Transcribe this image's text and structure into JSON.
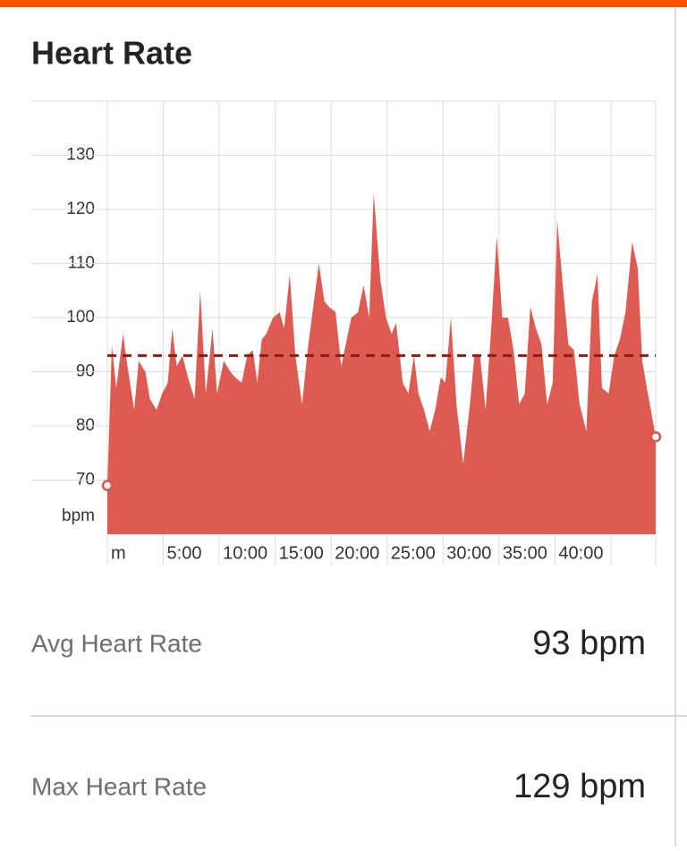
{
  "header": {
    "title": "Heart Rate"
  },
  "chart_data": {
    "type": "area",
    "y_label": "bpm",
    "x": [
      0,
      0.4,
      0.8,
      1.4,
      1.8,
      2.4,
      2.8,
      3.4,
      3.8,
      4.4,
      4.9,
      5.4,
      5.8,
      6.2,
      6.7,
      7.2,
      7.8,
      8.3,
      8.8,
      9.4,
      9.8,
      10.4,
      11,
      11.4,
      12,
      12.5,
      13,
      13.4,
      13.8,
      14.2,
      14.8,
      15.4,
      15.8,
      16.3,
      16.8,
      17.4,
      17.9,
      18.4,
      18.9,
      19.4,
      19.8,
      20.4,
      20.9,
      21.4,
      21.8,
      22.4,
      22.9,
      23.4,
      23.8,
      24.4,
      24.9,
      25.4,
      25.8,
      26.4,
      26.9,
      27.4,
      27.8,
      28.3,
      28.8,
      29.3,
      29.8,
      30.2,
      30.7,
      31.2,
      31.8,
      32.4,
      32.8,
      33.3,
      33.8,
      34.3,
      34.8,
      35.3,
      35.8,
      36.3,
      36.8,
      37.3,
      37.8,
      38.3,
      38.8,
      39.3,
      39.8,
      40.2,
      40.7,
      41.2,
      41.7,
      42.2,
      42.8,
      43.3,
      43.8,
      44.2,
      44.8,
      45.3,
      45.8,
      46.3,
      46.9,
      47.4,
      47.8,
      48.3,
      49
    ],
    "values": [
      69,
      95,
      87,
      97,
      91,
      83,
      92,
      90,
      85,
      83,
      86,
      88,
      98,
      91,
      93,
      89,
      85,
      105,
      86,
      98,
      86,
      92,
      90,
      89,
      88,
      93,
      94,
      88,
      96,
      97,
      100,
      101,
      98,
      108,
      93,
      84,
      94,
      102,
      110,
      103,
      102,
      101,
      91,
      96,
      100,
      101,
      106,
      100,
      123,
      107,
      100,
      97,
      99,
      88,
      86,
      93,
      86,
      83,
      79,
      83,
      89,
      88,
      100,
      84,
      73,
      84,
      93,
      93,
      83,
      98,
      115,
      100,
      100,
      94,
      84,
      86,
      102,
      98,
      95,
      84,
      88,
      118,
      106,
      95,
      94,
      84,
      79,
      103,
      108,
      87,
      86,
      93,
      96,
      101,
      114,
      109,
      92,
      86,
      78
    ],
    "color": "#dd564b",
    "reference_line": 93,
    "reference_color": "#8e1c16",
    "xlim": [
      0,
      49
    ],
    "ylim": [
      60,
      140
    ],
    "yticks": [
      70,
      80,
      90,
      100,
      110,
      120,
      130
    ],
    "xticks": [
      {
        "value": 0,
        "label": "m"
      },
      {
        "value": 5,
        "label": "5:00"
      },
      {
        "value": 10,
        "label": "10:00"
      },
      {
        "value": 15,
        "label": "15:00"
      },
      {
        "value": 20,
        "label": "20:00"
      },
      {
        "value": 25,
        "label": "25:00"
      },
      {
        "value": 30,
        "label": "30:00"
      },
      {
        "value": 35,
        "label": "35:00"
      },
      {
        "value": 40,
        "label": "40:00"
      },
      {
        "value": 45,
        "label": null
      }
    ],
    "grid": true
  },
  "stats": [
    {
      "label": "Avg Heart Rate",
      "value": "93 bpm"
    },
    {
      "label": "Max Heart Rate",
      "value": "129 bpm"
    }
  ]
}
